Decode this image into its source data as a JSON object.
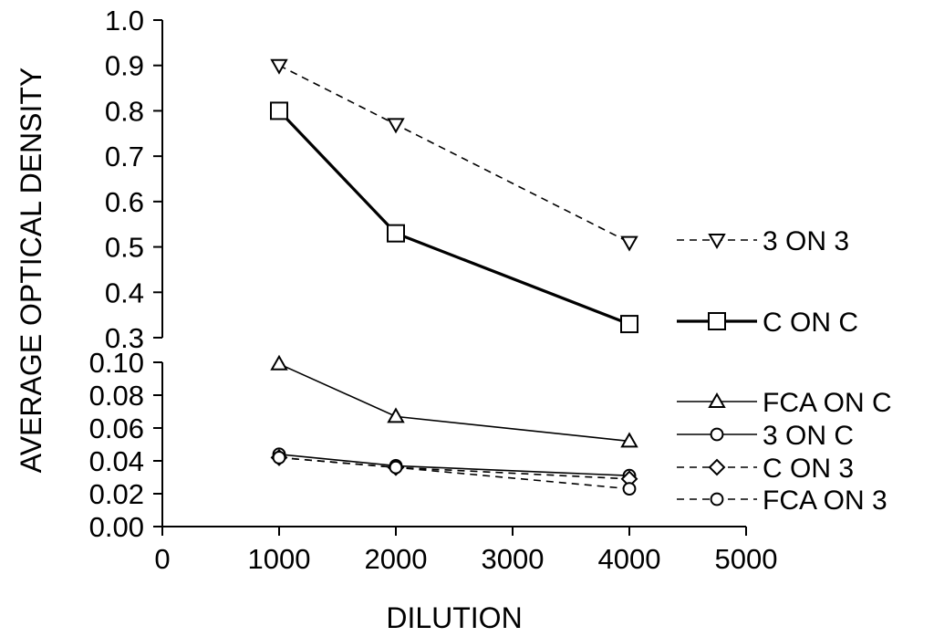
{
  "chart_data": {
    "type": "line",
    "xlabel": "DILUTION",
    "ylabel": "AVERAGE OPTICAL DENSITY",
    "x_axis": {
      "range": [
        0,
        5000
      ],
      "ticks": [
        0,
        1000,
        2000,
        3000,
        4000,
        5000
      ],
      "tick_labels": [
        "0",
        "1000",
        "2000",
        "3000",
        "4000",
        "5000"
      ]
    },
    "y_axis_upper": {
      "range": [
        0.3,
        1.0
      ],
      "ticks": [
        0.3,
        0.4,
        0.5,
        0.6,
        0.7,
        0.8,
        0.9,
        1.0
      ],
      "tick_labels": [
        "0.3",
        "0.4",
        "0.5",
        "0.6",
        "0.7",
        "0.8",
        "0.9",
        "1.0"
      ]
    },
    "y_axis_lower": {
      "range": [
        0.0,
        0.1
      ],
      "ticks": [
        0.0,
        0.02,
        0.04,
        0.06,
        0.08,
        0.1
      ],
      "tick_labels": [
        "0.00",
        "0.02",
        "0.04",
        "0.06",
        "0.08",
        "0.10"
      ]
    },
    "broken_axis": true,
    "grid": false,
    "legend_position": "right",
    "series": [
      {
        "name": "3 ON 3",
        "panel": "upper",
        "marker": "triangle-down",
        "line": "dashed",
        "x": [
          1000,
          2000,
          4000
        ],
        "y": [
          0.9,
          0.77,
          0.51
        ]
      },
      {
        "name": "C ON C",
        "panel": "upper",
        "marker": "square",
        "line": "solid-thick",
        "x": [
          1000,
          2000,
          4000
        ],
        "y": [
          0.8,
          0.53,
          0.33
        ]
      },
      {
        "name": "FCA ON C",
        "panel": "lower",
        "marker": "triangle-up",
        "line": "solid",
        "x": [
          1000,
          2000,
          4000
        ],
        "y": [
          0.099,
          0.067,
          0.052
        ]
      },
      {
        "name": "3 ON C",
        "panel": "lower",
        "marker": "circle",
        "line": "solid",
        "x": [
          1000,
          2000,
          4000
        ],
        "y": [
          0.044,
          0.037,
          0.031
        ]
      },
      {
        "name": "C ON 3",
        "panel": "lower",
        "marker": "diamond",
        "line": "dashed",
        "x": [
          1000,
          2000,
          4000
        ],
        "y": [
          0.042,
          0.036,
          0.029
        ]
      },
      {
        "name": "FCA ON 3",
        "panel": "lower",
        "marker": "circle",
        "line": "dashed",
        "x": [
          1000,
          2000,
          4000
        ],
        "y": [
          0.042,
          0.036,
          0.023
        ]
      }
    ]
  }
}
